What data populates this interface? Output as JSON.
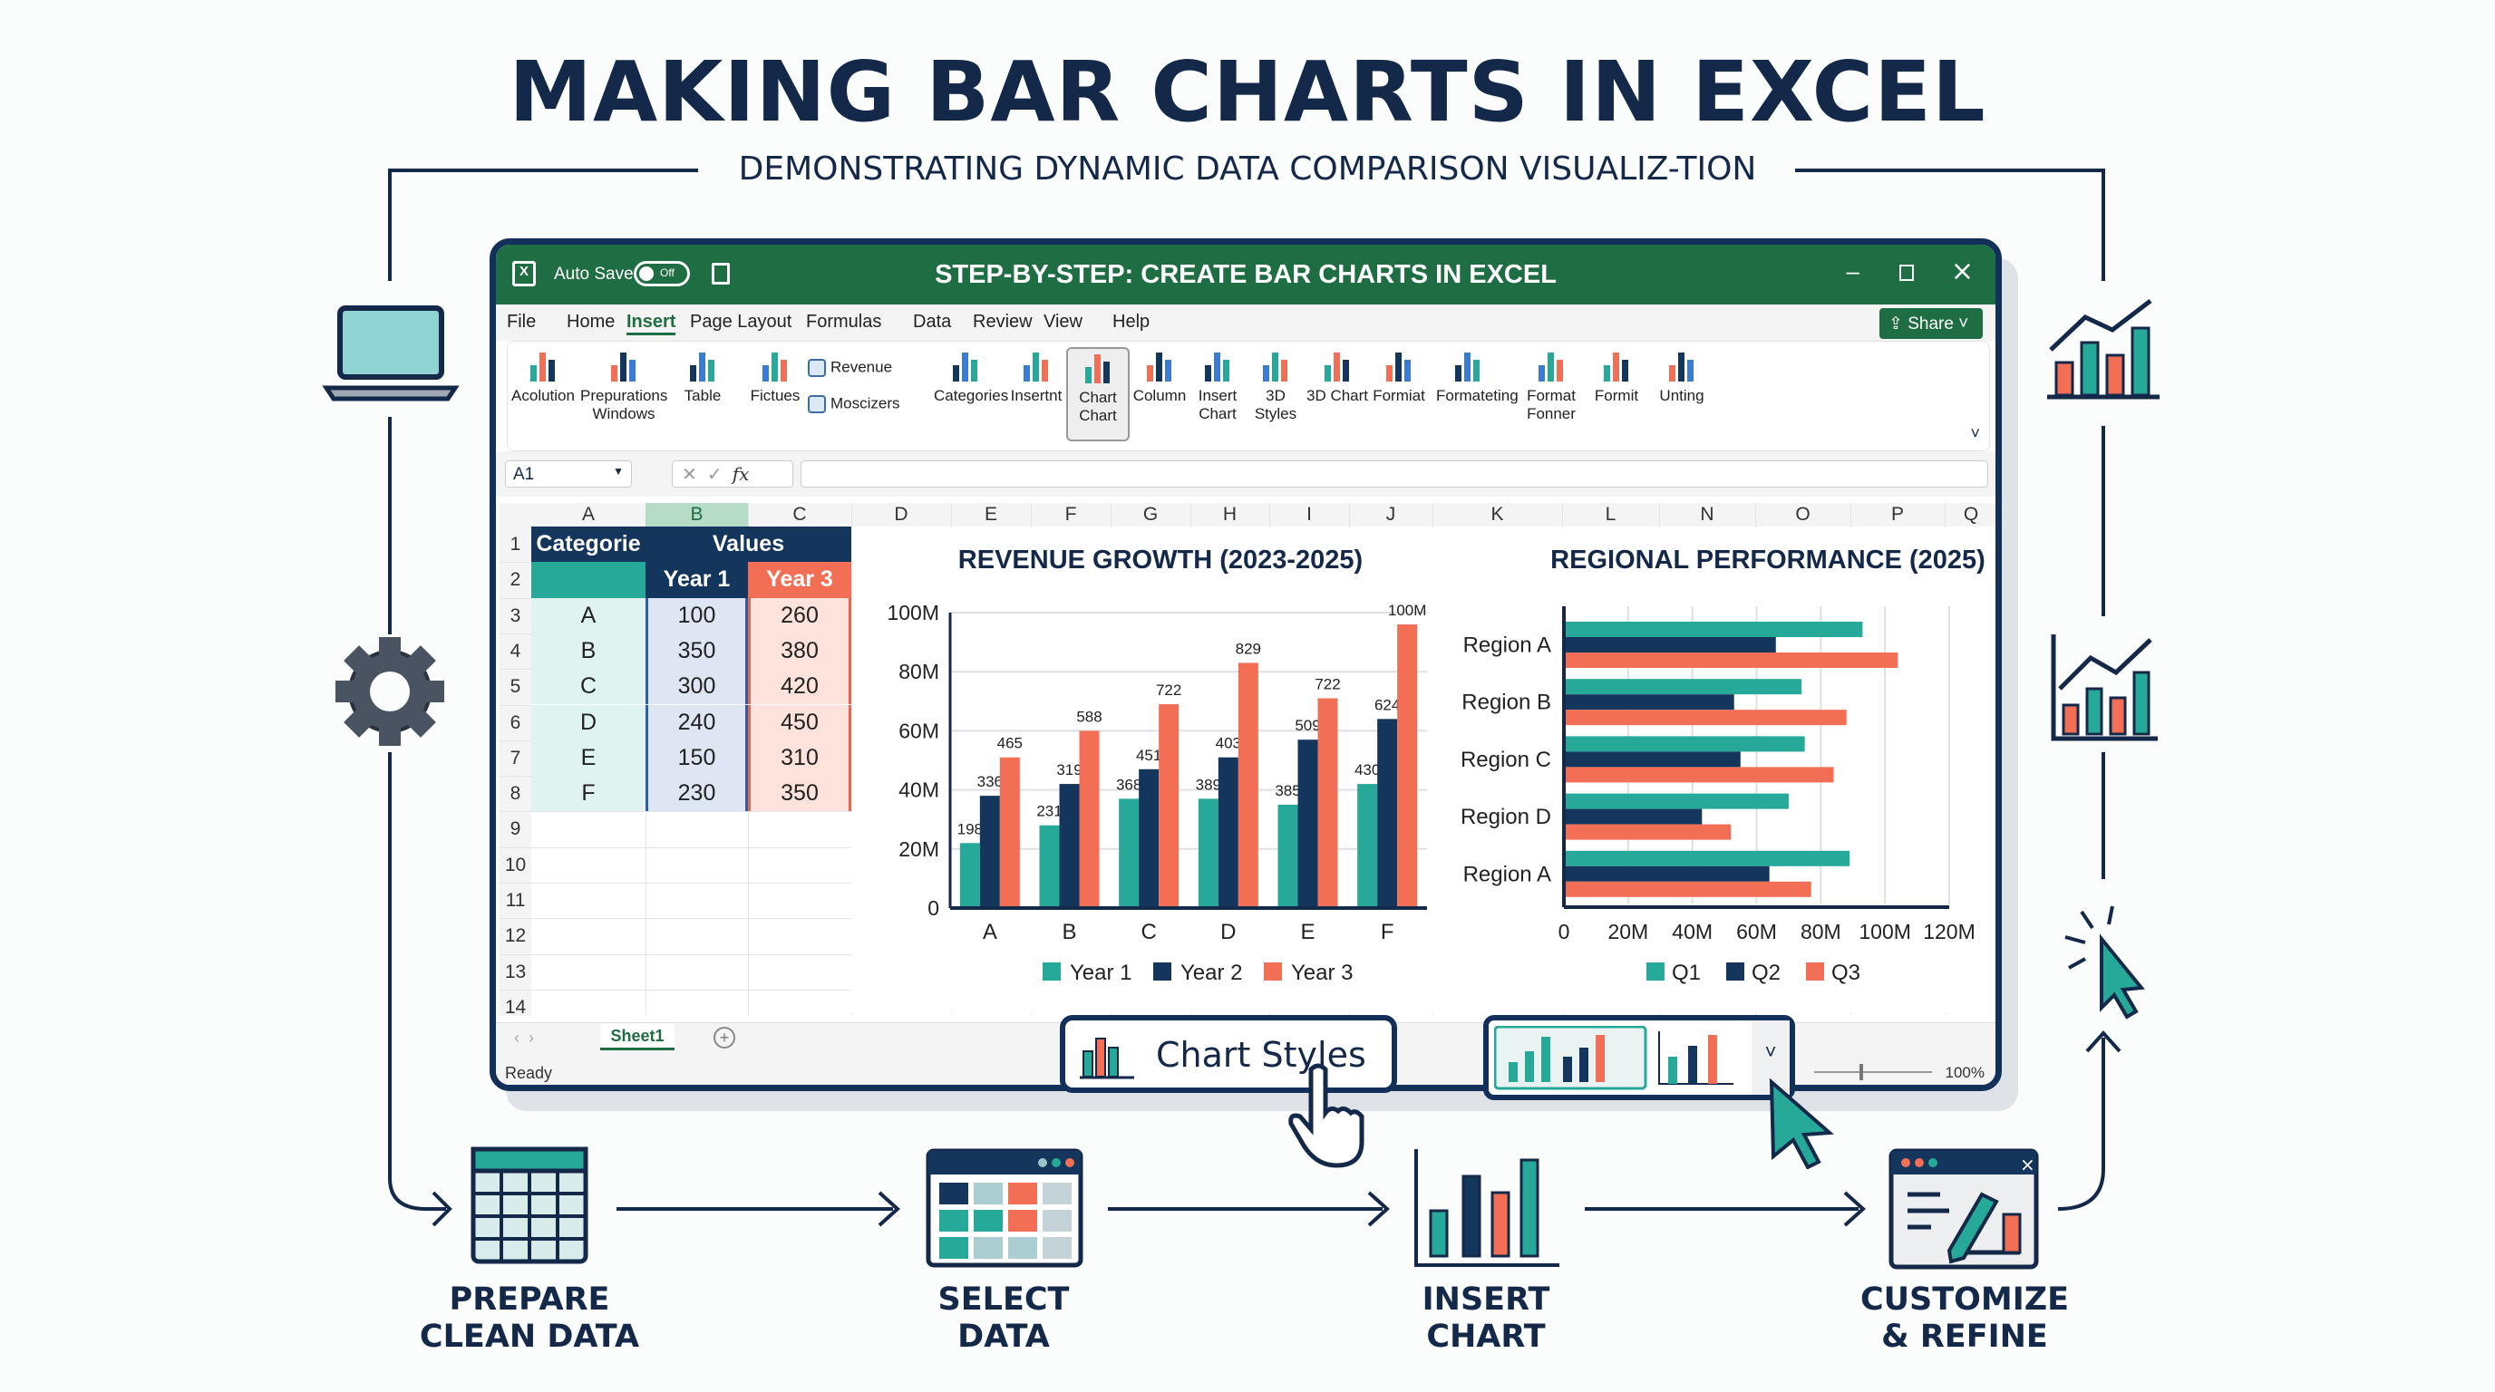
{
  "header": {
    "title": "MAKING BAR CHARTS IN EXCEL",
    "subtitle": "DEMONSTRATING DYNAMIC DATA COMPARISON VISUALIZ-TION"
  },
  "colors": {
    "teal": "#27a99a",
    "navy": "#14355c",
    "coral": "#f26f55",
    "excel_green": "#1f6e43"
  },
  "window": {
    "title": "STEP-BY-STEP: CREATE BAR CHARTS IN EXCEL",
    "autosave_label": "Auto Save",
    "autosave_state": "Off",
    "share_label": "Share",
    "menu": [
      "File",
      "Home",
      "Insert",
      "Page Layout",
      "Formulas",
      "Data",
      "Review",
      "View",
      "Help"
    ],
    "active_menu": "Insert",
    "ribbon": [
      {
        "label": "Acolution",
        "icon": "form-icon"
      },
      {
        "label": "Prepurations Windows",
        "icon": "window-icon"
      },
      {
        "label": "Table",
        "icon": "table-icon"
      },
      {
        "label": "Fictues",
        "icon": "picture-icon"
      },
      {
        "label": "Revenue",
        "icon": "shapes-icon"
      },
      {
        "label": "Moscizers",
        "icon": "smartart-icon"
      },
      {
        "label": "Categories",
        "icon": "category-chart-icon"
      },
      {
        "label": "Insertnt",
        "icon": "insert-list-icon"
      },
      {
        "label": "Chart Chart",
        "icon": "bar-chart-icon"
      },
      {
        "label": "Column",
        "icon": "column-chart-icon"
      },
      {
        "label": "Insert Chart",
        "icon": "insert-chart-icon"
      },
      {
        "label": "3D Styles",
        "icon": "3d-styles-icon"
      },
      {
        "label": "3D Chart",
        "icon": "3d-chart-icon"
      },
      {
        "label": "Formiat",
        "icon": "format-icon"
      },
      {
        "label": "Formateting",
        "icon": "formatting-icon"
      },
      {
        "label": "Format Fonner",
        "icon": "function-icon"
      },
      {
        "label": "Formit",
        "icon": "formula-icon"
      },
      {
        "label": "Unting",
        "icon": "units-icon"
      }
    ],
    "name_box": "A1",
    "formula": "",
    "status": "Ready",
    "zoom": "100%",
    "sheet_tab": "Sheet1"
  },
  "sheet": {
    "columns": [
      "A",
      "B",
      "C",
      "D",
      "E",
      "F",
      "G",
      "H",
      "I",
      "J",
      "K",
      "L",
      "N",
      "O",
      "P",
      "Q"
    ],
    "rows": [
      "1",
      "2",
      "3",
      "4",
      "5",
      "6",
      "7",
      "8",
      "9",
      "10",
      "11",
      "12",
      "13",
      "14"
    ],
    "header": {
      "category": "Categorie",
      "values": "Values",
      "year1": "Year 1",
      "year3": "Year 3"
    },
    "data": [
      [
        "A",
        "100",
        "260"
      ],
      [
        "B",
        "350",
        "380"
      ],
      [
        "C",
        "300",
        "420"
      ],
      [
        "D",
        "240",
        "450"
      ],
      [
        "E",
        "150",
        "310"
      ],
      [
        "F",
        "230",
        "350"
      ]
    ]
  },
  "chart_data": [
    {
      "type": "bar",
      "title": "REVENUE GROWTH (2023-2025)",
      "categories": [
        "A",
        "B",
        "C",
        "D",
        "E",
        "F"
      ],
      "yticks": [
        "0",
        "20M",
        "40M",
        "60M",
        "80M",
        "100M"
      ],
      "ylim": [
        0,
        100
      ],
      "grid": true,
      "legend": "bottom",
      "series": [
        {
          "name": "Year 1",
          "color": "#27a99a",
          "values": [
            22,
            28,
            37,
            37,
            35,
            42
          ],
          "labels": [
            "198",
            "231",
            "368",
            "389",
            "385",
            "430"
          ]
        },
        {
          "name": "Year 2",
          "color": "#14355c",
          "values": [
            38,
            42,
            47,
            51,
            57,
            64
          ],
          "labels": [
            "336",
            "319",
            "451",
            "403",
            "509",
            "624"
          ]
        },
        {
          "name": "Year 3",
          "color": "#f26f55",
          "values": [
            51,
            60,
            69,
            83,
            71,
            96
          ],
          "labels": [
            "465",
            "588",
            "722",
            "829",
            "722",
            "100M"
          ]
        }
      ]
    },
    {
      "type": "bar",
      "orientation": "horizontal",
      "title": "REGIONAL PERFORMANCE (2025)",
      "categories": [
        "Region A",
        "Region B",
        "Region C",
        "Region D",
        "Region A"
      ],
      "xticks": [
        "0",
        "20M",
        "40M",
        "60M",
        "80M",
        "100M",
        "120M"
      ],
      "xlim": [
        0,
        120
      ],
      "grid": true,
      "legend": "bottom",
      "series": [
        {
          "name": "Q1",
          "color": "#27a99a",
          "values": [
            93,
            74,
            75,
            70,
            89
          ]
        },
        {
          "name": "Q2",
          "color": "#14355c",
          "values": [
            66,
            53,
            55,
            43,
            64
          ]
        },
        {
          "name": "Q3",
          "color": "#f26f55",
          "values": [
            104,
            88,
            84,
            52,
            77
          ]
        }
      ]
    }
  ],
  "chart_styles": {
    "label": "Chart Styles"
  },
  "steps": [
    {
      "line1": "PREPARE",
      "line2": "CLEAN DATA"
    },
    {
      "line1": "SELECT",
      "line2": "DATA"
    },
    {
      "line1": "INSERT",
      "line2": "CHART"
    },
    {
      "line1": "CUSTOMIZE",
      "line2": "& REFINE"
    }
  ]
}
